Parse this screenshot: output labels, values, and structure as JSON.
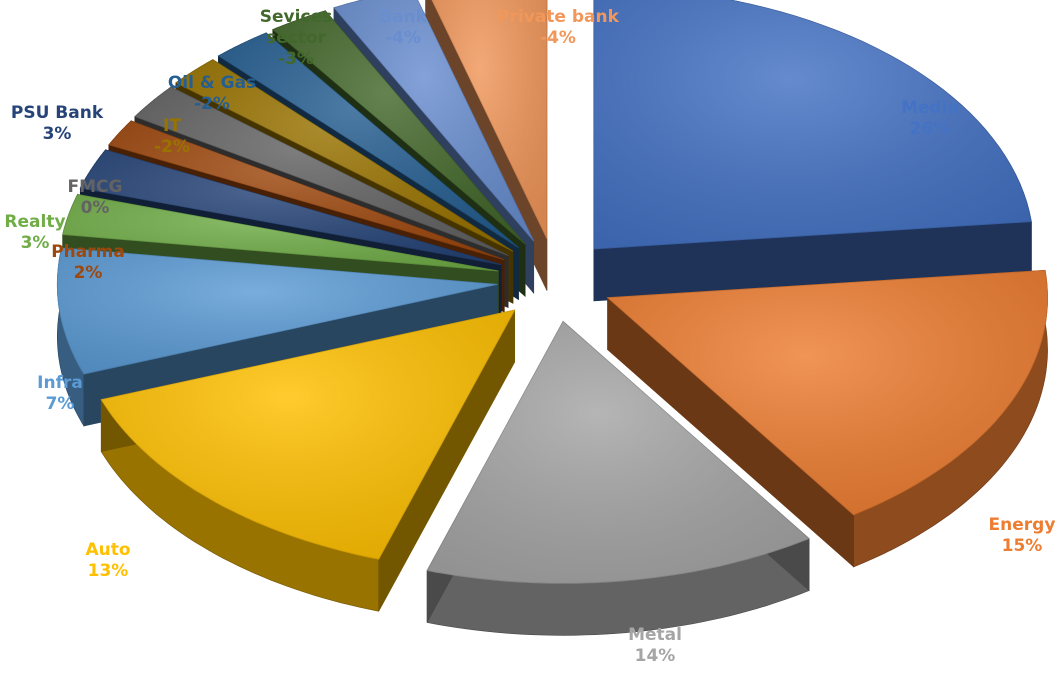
{
  "chart_data": {
    "type": "pie",
    "style": "3d-exploded",
    "slices": [
      {
        "label": "Media",
        "value": 26,
        "display": "26%",
        "color": "#4472C4"
      },
      {
        "label": "Energy",
        "value": 15,
        "display": "15%",
        "color": "#ED7D31"
      },
      {
        "label": "Metal",
        "value": 14,
        "display": "14%",
        "color": "#A5A5A5"
      },
      {
        "label": "Auto",
        "value": 13,
        "display": "13%",
        "color": "#FFC000"
      },
      {
        "label": "Infra",
        "value": 7,
        "display": "7%",
        "color": "#5B9BD5"
      },
      {
        "label": "Pharma",
        "value": 2,
        "display": "2%",
        "color": "#70AD47"
      },
      {
        "label": "Realty",
        "value": 3,
        "display": "3%",
        "color": "#264478"
      },
      {
        "label": "FMCG",
        "value": 0,
        "display": "0%",
        "color": "#9E480E"
      },
      {
        "label": "PSU Bank",
        "value": 3,
        "display": "3%",
        "color": "#636363"
      },
      {
        "label": "IT",
        "value": -2,
        "display": "-2%",
        "color": "#997300"
      },
      {
        "label": "Oil & Gas",
        "value": -2,
        "display": "-2%",
        "color": "#255E91"
      },
      {
        "label": "Sevices sector",
        "value": -3,
        "display": "-3%",
        "color": "#43682B"
      },
      {
        "label": "Bank",
        "value": -4,
        "display": "-4%",
        "color": "#698ED0"
      },
      {
        "label": "Private bank",
        "value": -4,
        "display": "-4%",
        "color": "#F1975A"
      }
    ]
  }
}
